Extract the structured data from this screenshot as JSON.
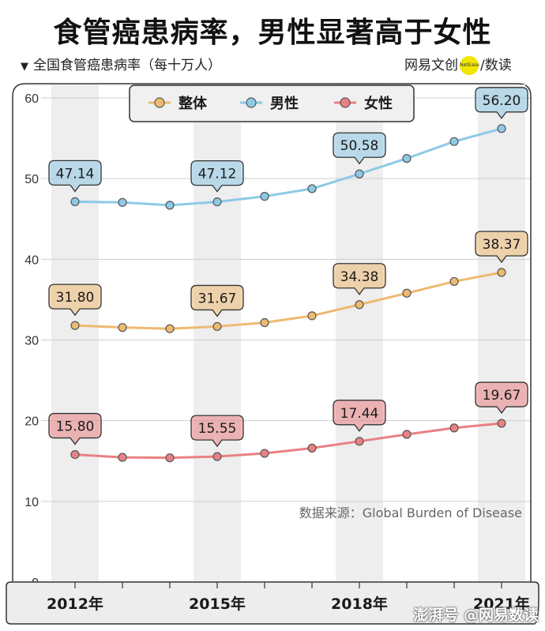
{
  "title": "食管癌患病率，男性显著高于女性",
  "subtitle": "全国食管癌患病率（每十万人）",
  "brand": {
    "name": "网易文创",
    "logo_text": "NetEase",
    "separator": "/",
    "product": "数读"
  },
  "watermark": "澎湃号 @网易数读",
  "colors": {
    "overall": "#EDBA72",
    "male": "#8EC9E6",
    "female": "#E98183"
  },
  "chart_data": {
    "type": "line",
    "x": [
      2012,
      2013,
      2014,
      2015,
      2016,
      2017,
      2018,
      2019,
      2020,
      2021
    ],
    "x_tick_labels": [
      "2012年",
      "2015年",
      "2018年",
      "2021年"
    ],
    "x_ticks": [
      2012,
      2015,
      2018,
      2021
    ],
    "ylim": [
      0,
      60
    ],
    "y_ticks": [
      0,
      10,
      20,
      30,
      40,
      50,
      60
    ],
    "grid": true,
    "legend_position": "top-center",
    "series": [
      {
        "name": "整体",
        "key": "overall",
        "values": [
          31.8,
          31.55,
          31.4,
          31.67,
          32.15,
          33.0,
          34.38,
          35.8,
          37.25,
          38.37
        ],
        "labels": [
          "31.80",
          "",
          "",
          "31.67",
          "",
          "",
          "34.38",
          "",
          "",
          "38.37"
        ]
      },
      {
        "name": "男性",
        "key": "male",
        "values": [
          47.14,
          47.05,
          46.7,
          47.12,
          47.8,
          48.75,
          50.58,
          52.5,
          54.6,
          56.2
        ],
        "labels": [
          "47.14",
          "",
          "",
          "47.12",
          "",
          "",
          "50.58",
          "",
          "",
          "56.20"
        ]
      },
      {
        "name": "女性",
        "key": "female",
        "values": [
          15.8,
          15.45,
          15.4,
          15.55,
          15.95,
          16.6,
          17.44,
          18.3,
          19.1,
          19.67
        ],
        "labels": [
          "15.80",
          "",
          "",
          "15.55",
          "",
          "",
          "17.44",
          "",
          "",
          "19.67"
        ]
      }
    ],
    "source": "数据来源：Global Burden of Disease"
  }
}
